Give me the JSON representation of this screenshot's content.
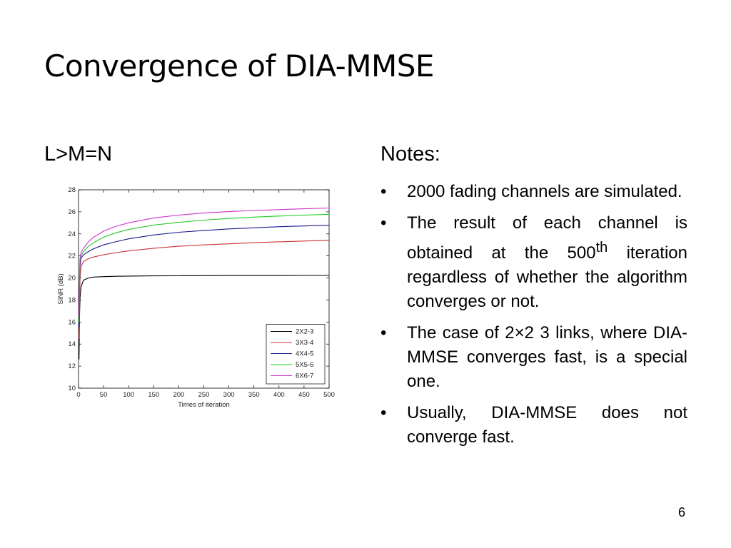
{
  "slide": {
    "title": "Convergence of DIA-MMSE",
    "left_heading": "L>M=N",
    "notes_heading": "Notes:",
    "bullet_symbol": "•",
    "notes": [
      {
        "text": "2000 fading channels are simulated."
      },
      {
        "text_before": "The result of each channel is obtained at the 500",
        "sup": "th",
        "text_after": " iteration regardless of whether the algorithm converges or not."
      },
      {
        "text": "The case of 2×2 3 links, where DIA-MMSE converges fast, is a special one."
      },
      {
        "text": "Usually, DIA-MMSE does not converge fast."
      }
    ],
    "page_number": "6"
  },
  "chart_data": {
    "type": "line",
    "xlabel": "Times of iteration",
    "ylabel": "SINR (dB)",
    "xlim": [
      0,
      500
    ],
    "ylim": [
      10,
      28
    ],
    "xticks": [
      0,
      50,
      100,
      150,
      200,
      250,
      300,
      350,
      400,
      450,
      500
    ],
    "yticks": [
      10,
      12,
      14,
      16,
      18,
      20,
      22,
      24,
      26,
      28
    ],
    "grid": false,
    "legend_position": "bottom-right",
    "x": [
      1,
      2,
      3,
      5,
      10,
      20,
      30,
      50,
      75,
      100,
      150,
      200,
      250,
      300,
      350,
      400,
      450,
      500
    ],
    "series": [
      {
        "name": "2X2-3",
        "color": "#000000",
        "values": [
          12.6,
          16.5,
          18.2,
          19.2,
          19.8,
          20.0,
          20.08,
          20.12,
          20.15,
          20.17,
          20.19,
          20.2,
          20.21,
          20.22,
          20.22,
          20.22,
          20.23,
          20.23
        ]
      },
      {
        "name": "3X3-4",
        "color": "#cc3333",
        "values": [
          14.5,
          18.0,
          20.0,
          21.0,
          21.5,
          21.75,
          21.9,
          22.1,
          22.3,
          22.45,
          22.7,
          22.88,
          23.0,
          23.1,
          23.2,
          23.28,
          23.35,
          23.42
        ]
      },
      {
        "name": "4X4-5",
        "color": "#1a1a8c",
        "values": [
          15.5,
          19.0,
          21.0,
          21.8,
          22.1,
          22.4,
          22.65,
          23.0,
          23.3,
          23.55,
          23.9,
          24.15,
          24.3,
          24.45,
          24.55,
          24.65,
          24.72,
          24.78
        ]
      },
      {
        "name": "5X5-6",
        "color": "#22cc22",
        "values": [
          16.0,
          19.5,
          21.5,
          22.0,
          22.4,
          22.9,
          23.2,
          23.7,
          24.1,
          24.4,
          24.8,
          25.05,
          25.25,
          25.4,
          25.52,
          25.62,
          25.7,
          25.78
        ]
      },
      {
        "name": "6X6-7",
        "color": "#cc33cc",
        "values": [
          16.5,
          20.0,
          21.8,
          22.3,
          22.7,
          23.3,
          23.7,
          24.25,
          24.7,
          25.0,
          25.45,
          25.7,
          25.9,
          26.02,
          26.12,
          26.2,
          26.28,
          26.35
        ]
      }
    ]
  }
}
